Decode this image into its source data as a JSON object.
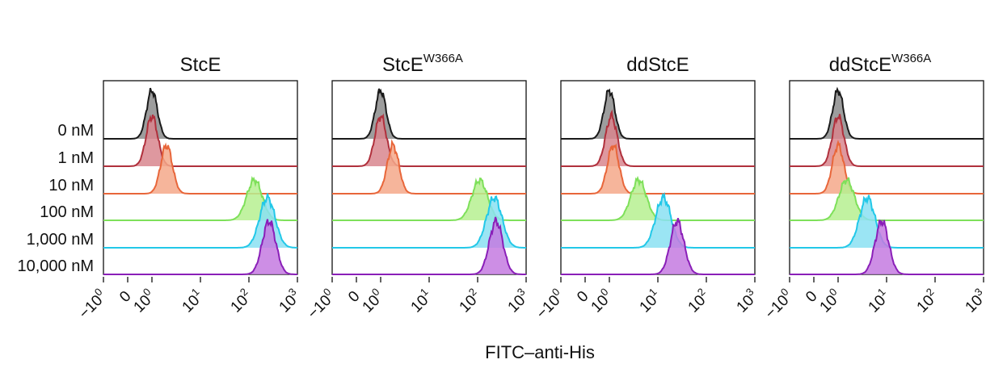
{
  "chart_data": {
    "type": "area",
    "title": "",
    "xlabel": "FITC–anti-His",
    "ylabel": "",
    "x_scale": "biexponential",
    "x_ticks": [
      {
        "value": -1,
        "base": "−",
        "mantissa": "10",
        "exp": "0"
      },
      {
        "value": 0,
        "base": "0",
        "mantissa": "",
        "exp": ""
      },
      {
        "value": 1,
        "base": "",
        "mantissa": "10",
        "exp": "0"
      },
      {
        "value": 10,
        "base": "",
        "mantissa": "10",
        "exp": "1"
      },
      {
        "value": 100,
        "base": "",
        "mantissa": "10",
        "exp": "2"
      },
      {
        "value": 1000,
        "base": "",
        "mantissa": "10",
        "exp": "3"
      }
    ],
    "concentrations": [
      "0 nM",
      "1 nM",
      "10 nM",
      "100 nM",
      "1,000 nM",
      "10,000 nM"
    ],
    "row_colors": [
      "#1a1a1a",
      "#b0303c",
      "#e8663a",
      "#7ee05a",
      "#22c8e8",
      "#8a1fb8"
    ],
    "row_fills": [
      "#8c8c8c",
      "#d8868e",
      "#f5a88a",
      "#b6f090",
      "#8ae0f2",
      "#c47ae0"
    ],
    "panels": [
      {
        "name": "StcE",
        "title_base": "StcE",
        "title_sup": "",
        "title_color": "#111111",
        "peaks": [
          1.0,
          1.0,
          2.0,
          130,
          240,
          260
        ]
      },
      {
        "name": "StcE W366A",
        "title_base": "StcE",
        "title_sup": "W366A",
        "title_color": "#111111",
        "peaks": [
          1.0,
          1.0,
          1.8,
          110,
          220,
          240
        ]
      },
      {
        "name": "ddStcE",
        "title_base": "ddStcE",
        "title_sup": "",
        "title_color": "#111111",
        "peaks": [
          1.0,
          1.1,
          1.2,
          4.0,
          13,
          25
        ]
      },
      {
        "name": "ddStcE W366A",
        "title_base": "ddStcE",
        "title_sup": "W366A",
        "title_color": "#b0303c",
        "peaks": [
          1.0,
          1.0,
          1.0,
          1.5,
          4.0,
          8.0
        ]
      }
    ]
  }
}
